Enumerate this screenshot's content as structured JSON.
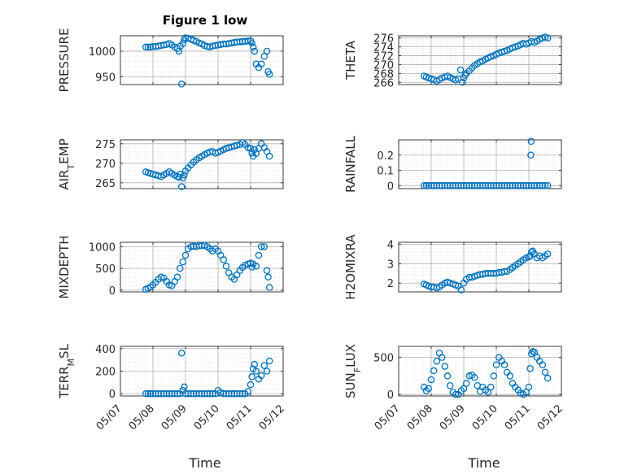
{
  "figure": {
    "title": "Figure 1 low",
    "xlabel": "Time"
  },
  "colors": {
    "marker": "#0072bd",
    "axis": "#262626",
    "grid": "#b0b0b0",
    "minor_grid": "#dcdcdc"
  },
  "chart_data": [
    {
      "type": "scatter",
      "ylabel": "PRESSURE",
      "ylim": [
        935,
        1030
      ],
      "yticks": [
        950,
        1000
      ],
      "ytick_labels": [
        "950",
        "1000"
      ],
      "x": [
        7.78,
        7.85,
        7.92,
        8.0,
        8.08,
        8.17,
        8.25,
        8.33,
        8.42,
        8.5,
        8.58,
        8.67,
        8.75,
        8.8,
        8.84,
        8.88,
        8.92,
        8.96,
        9.0,
        9.08,
        9.17,
        9.25,
        9.33,
        9.42,
        9.5,
        9.58,
        9.67,
        9.75,
        9.83,
        9.92,
        10.0,
        10.08,
        10.17,
        10.25,
        10.33,
        10.42,
        10.5,
        10.58,
        10.67,
        10.75,
        10.83,
        10.92,
        11.0,
        11.04,
        11.08,
        11.12,
        11.17,
        11.25,
        11.33,
        11.42,
        11.5,
        11.54,
        11.58
      ],
      "y": [
        1008,
        1008,
        1008,
        1009,
        1009,
        1010,
        1011,
        1012,
        1013,
        1015,
        1012,
        1008,
        1005,
        1000,
        1010,
        936,
        1015,
        1022,
        1026,
        1025,
        1023,
        1021,
        1019,
        1016,
        1014,
        1011,
        1009,
        1008,
        1010,
        1011,
        1012,
        1013,
        1014,
        1014,
        1015,
        1016,
        1017,
        1018,
        1018,
        1019,
        1019,
        1020,
        1020,
        1016,
        1008,
        1000,
        975,
        968,
        975,
        990,
        1000,
        960,
        955
      ]
    },
    {
      "type": "scatter",
      "ylabel": "THETA",
      "ylim": [
        265.5,
        276.5
      ],
      "yticks": [
        266,
        268,
        270,
        272,
        274,
        276
      ],
      "ytick_labels": [
        "266",
        "268",
        "270",
        "272",
        "274",
        "276"
      ],
      "x": [
        7.78,
        7.85,
        7.92,
        8.0,
        8.08,
        8.17,
        8.25,
        8.33,
        8.42,
        8.5,
        8.58,
        8.67,
        8.75,
        8.83,
        8.9,
        8.96,
        9.0,
        9.04,
        9.08,
        9.17,
        9.25,
        9.33,
        9.42,
        9.5,
        9.58,
        9.67,
        9.75,
        9.83,
        9.92,
        10.0,
        10.08,
        10.17,
        10.25,
        10.33,
        10.42,
        10.5,
        10.58,
        10.67,
        10.75,
        10.83,
        10.92,
        11.0,
        11.08,
        11.17,
        11.25,
        11.33,
        11.42,
        11.5,
        11.58
      ],
      "y": [
        267.4,
        267.2,
        267.0,
        266.8,
        266.6,
        266.3,
        266.6,
        267.0,
        267.2,
        267.4,
        267.1,
        266.8,
        266.5,
        266.8,
        268.8,
        266.0,
        267.0,
        267.6,
        268.0,
        268.6,
        269.2,
        269.8,
        270.2,
        270.6,
        270.8,
        271.2,
        271.5,
        271.8,
        272.0,
        272.3,
        272.6,
        272.8,
        273.0,
        273.2,
        273.5,
        273.8,
        274.0,
        274.2,
        274.5,
        274.8,
        274.6,
        274.9,
        275.2,
        275.0,
        275.3,
        275.7,
        276.0,
        276.2,
        276.0
      ]
    },
    {
      "type": "scatter",
      "ylabel": "AIR_TEMP",
      "ylim": [
        263.5,
        276
      ],
      "yticks": [
        265,
        270,
        275
      ],
      "ytick_labels": [
        "265",
        "270",
        "275"
      ],
      "x": [
        7.78,
        7.85,
        7.92,
        8.0,
        8.08,
        8.17,
        8.25,
        8.33,
        8.42,
        8.5,
        8.58,
        8.67,
        8.75,
        8.8,
        8.84,
        8.88,
        8.92,
        8.96,
        9.0,
        9.08,
        9.17,
        9.25,
        9.33,
        9.42,
        9.5,
        9.58,
        9.67,
        9.75,
        9.83,
        9.92,
        10.0,
        10.08,
        10.17,
        10.25,
        10.33,
        10.42,
        10.5,
        10.58,
        10.67,
        10.75,
        10.83,
        10.92,
        11.0,
        11.04,
        11.08,
        11.12,
        11.17,
        11.25,
        11.33,
        11.42,
        11.5,
        11.58
      ],
      "y": [
        267.8,
        267.6,
        267.4,
        267.2,
        267.0,
        266.8,
        266.6,
        267.0,
        267.4,
        267.8,
        267.4,
        266.9,
        266.6,
        266.4,
        267.2,
        264.0,
        266.2,
        267.0,
        268.0,
        268.8,
        269.6,
        270.3,
        270.9,
        271.4,
        271.8,
        272.2,
        272.6,
        272.9,
        273.0,
        272.6,
        272.8,
        273.1,
        273.5,
        273.8,
        274.0,
        274.2,
        274.4,
        274.6,
        274.8,
        275.3,
        274.8,
        274.0,
        273.8,
        272.6,
        271.8,
        273.5,
        272.5,
        273.8,
        275.0,
        274.0,
        273.0,
        271.8
      ]
    },
    {
      "type": "scatter",
      "ylabel": "RAINFALL",
      "ylim": [
        -0.02,
        0.3
      ],
      "yticks": [
        0,
        0.1,
        0.2
      ],
      "ytick_labels": [
        "0",
        "0.1",
        "0.2"
      ],
      "x": [
        7.78,
        7.85,
        7.92,
        8.0,
        8.08,
        8.17,
        8.25,
        8.33,
        8.42,
        8.5,
        8.58,
        8.67,
        8.75,
        8.83,
        8.92,
        9.0,
        9.08,
        9.17,
        9.25,
        9.33,
        9.42,
        9.5,
        9.58,
        9.67,
        9.75,
        9.83,
        9.92,
        10.0,
        10.08,
        10.17,
        10.25,
        10.33,
        10.42,
        10.5,
        10.58,
        10.67,
        10.75,
        10.83,
        10.92,
        11.0,
        11.08,
        11.17,
        11.25,
        11.33,
        11.42,
        11.5,
        11.58,
        11.06,
        11.07
      ],
      "y": [
        0,
        0,
        0,
        0,
        0,
        0,
        0,
        0,
        0,
        0,
        0,
        0,
        0,
        0,
        0,
        0,
        0,
        0,
        0,
        0,
        0,
        0,
        0,
        0,
        0,
        0,
        0,
        0,
        0,
        0,
        0,
        0,
        0,
        0,
        0,
        0,
        0,
        0,
        0,
        0,
        0,
        0,
        0,
        0,
        0,
        0,
        0,
        0.2,
        0.29
      ]
    },
    {
      "type": "scatter",
      "ylabel": "MIXDEPTH",
      "ylim": [
        -40,
        1100
      ],
      "yticks": [
        0,
        500,
        1000
      ],
      "ytick_labels": [
        "0",
        "500",
        "1000"
      ],
      "x": [
        7.78,
        7.85,
        7.92,
        8.0,
        8.08,
        8.17,
        8.25,
        8.33,
        8.42,
        8.5,
        8.58,
        8.67,
        8.75,
        8.83,
        8.92,
        9.0,
        9.08,
        9.17,
        9.25,
        9.33,
        9.42,
        9.5,
        9.58,
        9.67,
        9.75,
        9.83,
        9.92,
        10.0,
        10.08,
        10.17,
        10.25,
        10.33,
        10.42,
        10.5,
        10.58,
        10.67,
        10.75,
        10.83,
        10.92,
        11.0,
        11.04,
        11.08,
        11.17,
        11.25,
        11.33,
        11.42,
        11.5,
        11.54,
        11.58
      ],
      "y": [
        20,
        40,
        70,
        120,
        180,
        250,
        300,
        280,
        200,
        120,
        100,
        200,
        300,
        500,
        650,
        800,
        950,
        1000,
        1010,
        1000,
        1020,
        1020,
        1030,
        1000,
        950,
        900,
        950,
        900,
        800,
        700,
        550,
        400,
        300,
        250,
        350,
        450,
        520,
        570,
        600,
        620,
        530,
        600,
        550,
        800,
        1000,
        1000,
        450,
        300,
        60
      ]
    },
    {
      "type": "scatter",
      "ylabel": "H2OMIXRA",
      "ylim": [
        1.55,
        4.1
      ],
      "yticks": [
        2,
        3,
        4
      ],
      "ytick_labels": [
        "2",
        "3",
        "4"
      ],
      "x": [
        7.78,
        7.85,
        7.92,
        8.0,
        8.08,
        8.17,
        8.25,
        8.33,
        8.42,
        8.5,
        8.58,
        8.67,
        8.75,
        8.83,
        8.92,
        9.0,
        9.08,
        9.17,
        9.25,
        9.33,
        9.42,
        9.5,
        9.58,
        9.67,
        9.75,
        9.83,
        9.92,
        10.0,
        10.08,
        10.17,
        10.25,
        10.33,
        10.42,
        10.5,
        10.58,
        10.67,
        10.75,
        10.83,
        10.92,
        11.0,
        11.04,
        11.08,
        11.12,
        11.17,
        11.25,
        11.33,
        11.42,
        11.5,
        11.58
      ],
      "y": [
        1.95,
        1.9,
        1.85,
        1.8,
        1.8,
        1.75,
        1.8,
        1.9,
        2.0,
        2.05,
        2.0,
        1.95,
        1.9,
        1.85,
        1.65,
        2.0,
        2.2,
        2.3,
        2.3,
        2.35,
        2.4,
        2.45,
        2.45,
        2.5,
        2.5,
        2.5,
        2.5,
        2.5,
        2.55,
        2.55,
        2.6,
        2.6,
        2.7,
        2.8,
        2.9,
        3.0,
        3.1,
        3.2,
        3.3,
        3.35,
        3.4,
        3.6,
        3.65,
        3.5,
        3.3,
        3.4,
        3.3,
        3.4,
        3.5
      ]
    },
    {
      "type": "scatter",
      "ylabel": "TERR_MSL",
      "ylim": [
        -20,
        420
      ],
      "yticks": [
        0,
        200,
        400
      ],
      "ytick_labels": [
        "0",
        "200",
        "400"
      ],
      "x": [
        7.78,
        7.85,
        7.92,
        8.0,
        8.08,
        8.17,
        8.25,
        8.33,
        8.42,
        8.5,
        8.58,
        8.67,
        8.75,
        8.83,
        8.88,
        8.92,
        8.96,
        9.0,
        9.08,
        9.17,
        9.25,
        9.33,
        9.42,
        9.5,
        9.58,
        9.67,
        9.75,
        9.83,
        9.92,
        10.0,
        10.08,
        10.17,
        10.25,
        10.33,
        10.42,
        10.5,
        10.58,
        10.67,
        10.75,
        10.83,
        10.92,
        11.0,
        11.04,
        11.08,
        11.12,
        11.17,
        11.25,
        11.33,
        11.42,
        11.5,
        11.58
      ],
      "y": [
        0,
        0,
        0,
        0,
        0,
        0,
        0,
        0,
        0,
        0,
        0,
        0,
        0,
        0,
        360,
        30,
        60,
        0,
        0,
        0,
        0,
        0,
        0,
        0,
        0,
        0,
        0,
        0,
        0,
        30,
        10,
        0,
        0,
        0,
        0,
        0,
        0,
        0,
        0,
        0,
        20,
        80,
        150,
        220,
        260,
        200,
        130,
        160,
        250,
        200,
        290
      ]
    },
    {
      "type": "scatter",
      "ylabel": "SUN_FLUX",
      "ylim": [
        -20,
        650
      ],
      "yticks": [
        0,
        500
      ],
      "ytick_labels": [
        "0",
        "500"
      ],
      "x": [
        7.78,
        7.85,
        7.92,
        8.0,
        8.08,
        8.17,
        8.25,
        8.33,
        8.42,
        8.5,
        8.58,
        8.67,
        8.75,
        8.83,
        8.92,
        9.0,
        9.08,
        9.17,
        9.25,
        9.33,
        9.42,
        9.5,
        9.58,
        9.67,
        9.75,
        9.83,
        9.92,
        10.0,
        10.08,
        10.17,
        10.25,
        10.33,
        10.42,
        10.5,
        10.58,
        10.67,
        10.75,
        10.83,
        10.92,
        11.0,
        11.04,
        11.08,
        11.12,
        11.17,
        11.25,
        11.33,
        11.42,
        11.5,
        11.58
      ],
      "y": [
        100,
        50,
        80,
        200,
        320,
        450,
        560,
        500,
        380,
        250,
        120,
        30,
        0,
        0,
        50,
        80,
        150,
        250,
        260,
        230,
        120,
        40,
        100,
        60,
        30,
        100,
        250,
        400,
        500,
        450,
        400,
        300,
        250,
        150,
        100,
        60,
        20,
        0,
        30,
        100,
        350,
        550,
        580,
        570,
        500,
        450,
        400,
        300,
        220
      ]
    }
  ],
  "xaxis": {
    "xlim": [
      7.0,
      12.0
    ],
    "ticks": [
      7,
      8,
      9,
      10,
      11,
      12
    ],
    "tick_labels": [
      "05/07",
      "05/08",
      "05/09",
      "05/10",
      "05/11",
      "05/12"
    ]
  }
}
